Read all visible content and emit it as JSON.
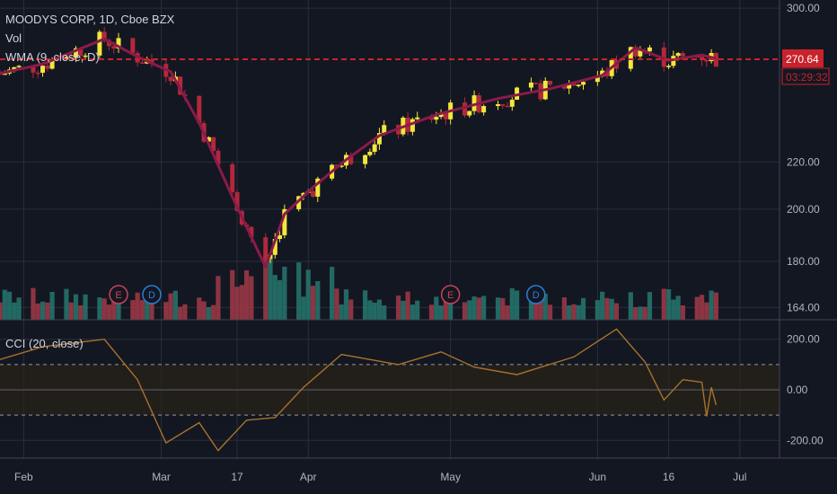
{
  "header": {
    "symbol_line": "MOODYS CORP, 1D, Cboe BZX",
    "vol_label": "Vol",
    "wma_label": "WMA (9, close, D)",
    "cci_label": "CCI (20, close)"
  },
  "price_axis": {
    "ticks": [
      "300.00",
      "220.00",
      "200.00",
      "180.00",
      "164.00"
    ],
    "last_price": "270.64",
    "countdown": "03:29:32"
  },
  "cci_axis": {
    "ticks": [
      "200.00",
      "0.00",
      "-200.00"
    ],
    "band_upper": 100,
    "band_lower": -100
  },
  "time_axis": {
    "labels": [
      "Feb",
      "Mar",
      "17",
      "Apr",
      "May",
      "Jun",
      "16",
      "Jul"
    ]
  },
  "event_markers": [
    "E",
    "D",
    "E",
    "D"
  ],
  "colors": {
    "background": "#131722",
    "up_candle": "#f5e63c",
    "down_candle": "#b2283c",
    "wma_line": "#8b1a4a",
    "volume_up": "#26786e",
    "volume_down": "#a33a48",
    "cci_line": "#a8722a",
    "price_line": "#c8232c",
    "earnings_marker": "#c8435a",
    "dividend_marker": "#2a7fd4"
  },
  "chart_data": {
    "type": "candlestick",
    "title": "MOODYS CORP, 1D, Cboe BZX",
    "xlabel": "",
    "ylabel": "",
    "ylim": [
      160,
      305
    ],
    "log_scale": true,
    "grid": true,
    "last_price": 270.64,
    "wma": [
      {
        "x": "Jan 27",
        "y": 263
      },
      {
        "x": "Feb 5",
        "y": 268
      },
      {
        "x": "Feb 18",
        "y": 282
      },
      {
        "x": "Feb 25",
        "y": 272
      },
      {
        "x": "Mar 3",
        "y": 264
      },
      {
        "x": "Mar 9",
        "y": 238
      },
      {
        "x": "Mar 16",
        "y": 205
      },
      {
        "x": "Mar 23",
        "y": 178
      },
      {
        "x": "Mar 27",
        "y": 198
      },
      {
        "x": "Apr 2",
        "y": 209
      },
      {
        "x": "Apr 9",
        "y": 221
      },
      {
        "x": "Apr 16",
        "y": 232
      },
      {
        "x": "Apr 28",
        "y": 242
      },
      {
        "x": "May 11",
        "y": 250
      },
      {
        "x": "May 22",
        "y": 255
      },
      {
        "x": "Jun 2",
        "y": 262
      },
      {
        "x": "Jun 9",
        "y": 277
      },
      {
        "x": "Jun 16",
        "y": 270
      },
      {
        "x": "Jun 23",
        "y": 273
      },
      {
        "x": "Jun 26",
        "y": 271
      }
    ],
    "cci": {
      "ylim": [
        -270,
        270
      ],
      "bands": [
        100,
        -100
      ],
      "points": [
        {
          "x": "Jan 27",
          "y": 120
        },
        {
          "x": "Feb 5",
          "y": 170
        },
        {
          "x": "Feb 18",
          "y": 200
        },
        {
          "x": "Feb 25",
          "y": 40
        },
        {
          "x": "Mar 2",
          "y": -210
        },
        {
          "x": "Mar 9",
          "y": -130
        },
        {
          "x": "Mar 13",
          "y": -240
        },
        {
          "x": "Mar 19",
          "y": -120
        },
        {
          "x": "Mar 25",
          "y": -110
        },
        {
          "x": "Mar 31",
          "y": 10
        },
        {
          "x": "Apr 8",
          "y": 140
        },
        {
          "x": "Apr 20",
          "y": 100
        },
        {
          "x": "Apr 29",
          "y": 150
        },
        {
          "x": "May 6",
          "y": 90
        },
        {
          "x": "May 15",
          "y": 60
        },
        {
          "x": "May 27",
          "y": 130
        },
        {
          "x": "Jun 5",
          "y": 240
        },
        {
          "x": "Jun 11",
          "y": 110
        },
        {
          "x": "Jun 15",
          "y": -40
        },
        {
          "x": "Jun 19",
          "y": 40
        },
        {
          "x": "Jun 23",
          "y": 30
        },
        {
          "x": "Jun 24",
          "y": -105
        },
        {
          "x": "Jun 25",
          "y": 10
        },
        {
          "x": "Jun 26",
          "y": -60
        }
      ]
    }
  }
}
